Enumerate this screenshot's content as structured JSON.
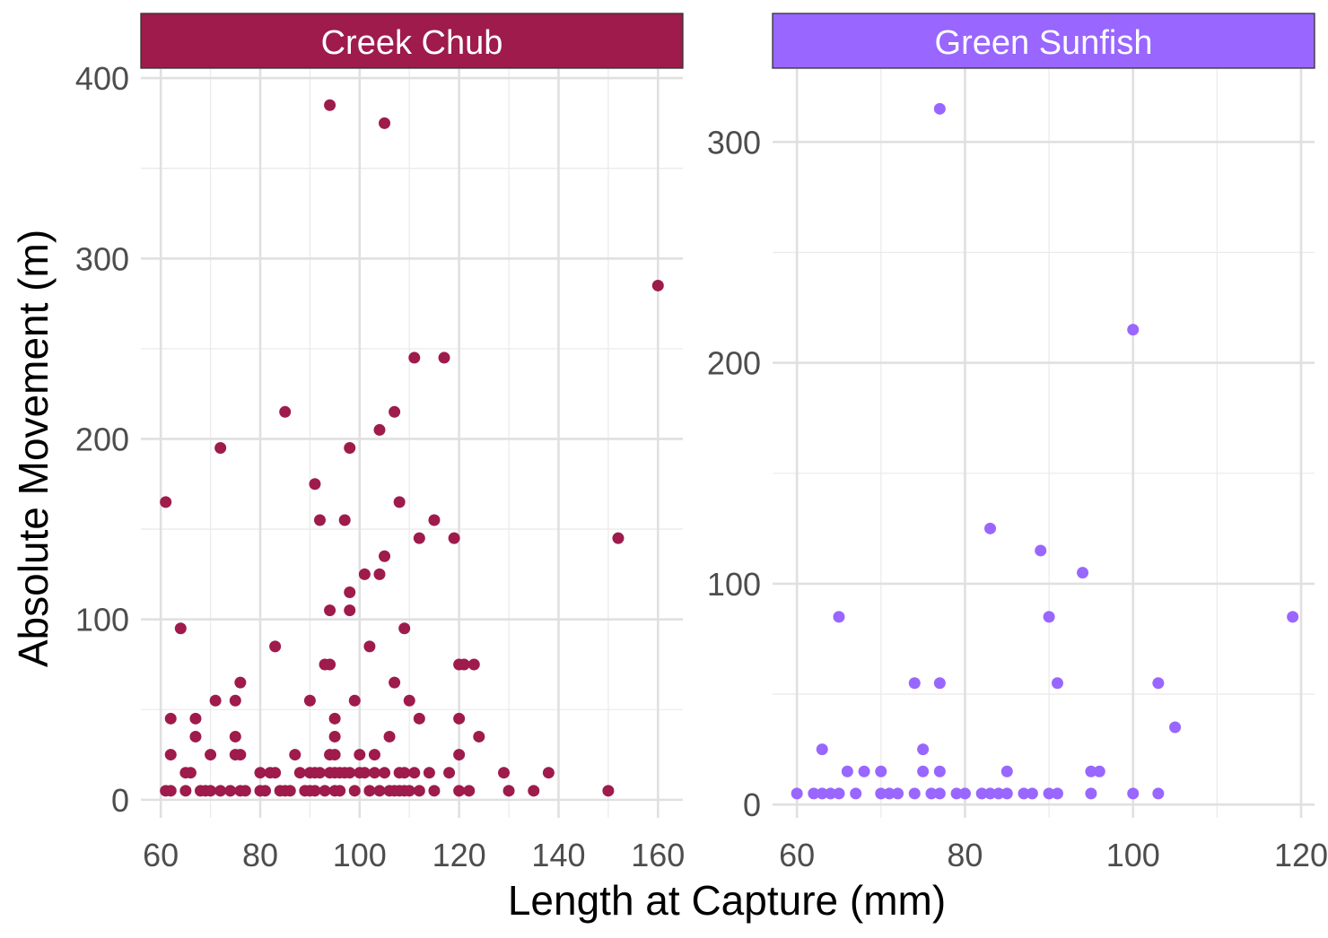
{
  "chart_data": {
    "type": "scatter",
    "xlabel": "Length at Capture (mm)",
    "ylabel": "Absolute Movement (m)",
    "grid": true,
    "legend": "none",
    "panels": [
      {
        "name": "Creek Chub",
        "color": "#9E1B4B",
        "xlim": [
          56,
          165
        ],
        "ylim": [
          -10,
          405
        ],
        "xticks": [
          60,
          80,
          100,
          120,
          140,
          160
        ],
        "yticks": [
          0,
          100,
          200,
          300,
          400
        ],
        "points": [
          [
            61,
            165
          ],
          [
            61,
            5
          ],
          [
            62,
            5
          ],
          [
            62,
            45
          ],
          [
            62,
            25
          ],
          [
            64,
            95
          ],
          [
            65,
            5
          ],
          [
            65,
            15
          ],
          [
            66,
            15
          ],
          [
            67,
            45
          ],
          [
            67,
            35
          ],
          [
            68,
            5
          ],
          [
            69,
            5
          ],
          [
            70,
            25
          ],
          [
            70,
            5
          ],
          [
            71,
            55
          ],
          [
            72,
            195
          ],
          [
            72,
            5
          ],
          [
            74,
            5
          ],
          [
            75,
            55
          ],
          [
            75,
            35
          ],
          [
            75,
            25
          ],
          [
            76,
            25
          ],
          [
            76,
            65
          ],
          [
            76,
            5
          ],
          [
            77,
            5
          ],
          [
            80,
            15
          ],
          [
            80,
            5
          ],
          [
            81,
            5
          ],
          [
            82,
            15
          ],
          [
            83,
            85
          ],
          [
            83,
            15
          ],
          [
            84,
            5
          ],
          [
            85,
            215
          ],
          [
            85,
            5
          ],
          [
            86,
            5
          ],
          [
            87,
            25
          ],
          [
            88,
            15
          ],
          [
            89,
            5
          ],
          [
            90,
            55
          ],
          [
            90,
            15
          ],
          [
            90,
            5
          ],
          [
            91,
            175
          ],
          [
            91,
            15
          ],
          [
            91,
            5
          ],
          [
            92,
            155
          ],
          [
            92,
            15
          ],
          [
            93,
            75
          ],
          [
            93,
            5
          ],
          [
            94,
            385
          ],
          [
            94,
            105
          ],
          [
            94,
            75
          ],
          [
            94,
            25
          ],
          [
            94,
            15
          ],
          [
            95,
            45
          ],
          [
            95,
            35
          ],
          [
            95,
            25
          ],
          [
            95,
            15
          ],
          [
            95,
            5
          ],
          [
            96,
            15
          ],
          [
            96,
            5
          ],
          [
            97,
            155
          ],
          [
            97,
            15
          ],
          [
            98,
            195
          ],
          [
            98,
            115
          ],
          [
            98,
            105
          ],
          [
            98,
            15
          ],
          [
            99,
            55
          ],
          [
            99,
            5
          ],
          [
            100,
            25
          ],
          [
            100,
            15
          ],
          [
            101,
            125
          ],
          [
            101,
            15
          ],
          [
            102,
            85
          ],
          [
            102,
            5
          ],
          [
            103,
            25
          ],
          [
            103,
            15
          ],
          [
            104,
            205
          ],
          [
            104,
            125
          ],
          [
            104,
            5
          ],
          [
            105,
            375
          ],
          [
            105,
            135
          ],
          [
            105,
            15
          ],
          [
            106,
            35
          ],
          [
            106,
            5
          ],
          [
            107,
            215
          ],
          [
            107,
            65
          ],
          [
            107,
            5
          ],
          [
            108,
            165
          ],
          [
            108,
            15
          ],
          [
            108,
            5
          ],
          [
            109,
            95
          ],
          [
            109,
            15
          ],
          [
            109,
            5
          ],
          [
            110,
            55
          ],
          [
            110,
            5
          ],
          [
            111,
            245
          ],
          [
            111,
            15
          ],
          [
            112,
            145
          ],
          [
            112,
            45
          ],
          [
            112,
            5
          ],
          [
            114,
            15
          ],
          [
            115,
            155
          ],
          [
            115,
            5
          ],
          [
            117,
            245
          ],
          [
            118,
            15
          ],
          [
            119,
            145
          ],
          [
            120,
            75
          ],
          [
            120,
            45
          ],
          [
            120,
            25
          ],
          [
            120,
            5
          ],
          [
            121,
            75
          ],
          [
            122,
            5
          ],
          [
            123,
            75
          ],
          [
            124,
            35
          ],
          [
            129,
            15
          ],
          [
            130,
            5
          ],
          [
            135,
            5
          ],
          [
            138,
            15
          ],
          [
            150,
            5
          ],
          [
            152,
            145
          ],
          [
            160,
            285
          ]
        ]
      },
      {
        "name": "Green Sunfish",
        "color": "#9966FF",
        "xlim": [
          57.1,
          121.6
        ],
        "ylim": [
          -6,
          333
        ],
        "xticks": [
          60,
          80,
          100,
          120
        ],
        "yticks": [
          0,
          100,
          200,
          300
        ],
        "points": [
          [
            60,
            5
          ],
          [
            62,
            5
          ],
          [
            63,
            5
          ],
          [
            63,
            25
          ],
          [
            64,
            5
          ],
          [
            65,
            5
          ],
          [
            65,
            85
          ],
          [
            66,
            15
          ],
          [
            67,
            5
          ],
          [
            68,
            15
          ],
          [
            70,
            15
          ],
          [
            70,
            5
          ],
          [
            71,
            5
          ],
          [
            72,
            5
          ],
          [
            74,
            5
          ],
          [
            74,
            55
          ],
          [
            75,
            25
          ],
          [
            75,
            15
          ],
          [
            76,
            5
          ],
          [
            77,
            315
          ],
          [
            77,
            55
          ],
          [
            77,
            15
          ],
          [
            77,
            5
          ],
          [
            79,
            5
          ],
          [
            80,
            5
          ],
          [
            82,
            5
          ],
          [
            83,
            5
          ],
          [
            83,
            125
          ],
          [
            84,
            5
          ],
          [
            85,
            15
          ],
          [
            85,
            5
          ],
          [
            87,
            5
          ],
          [
            88,
            5
          ],
          [
            89,
            115
          ],
          [
            90,
            85
          ],
          [
            90,
            5
          ],
          [
            91,
            55
          ],
          [
            91,
            5
          ],
          [
            94,
            105
          ],
          [
            95,
            15
          ],
          [
            95,
            5
          ],
          [
            96,
            15
          ],
          [
            100,
            215
          ],
          [
            100,
            5
          ],
          [
            103,
            55
          ],
          [
            103,
            5
          ],
          [
            105,
            35
          ],
          [
            119,
            85
          ]
        ]
      }
    ]
  }
}
